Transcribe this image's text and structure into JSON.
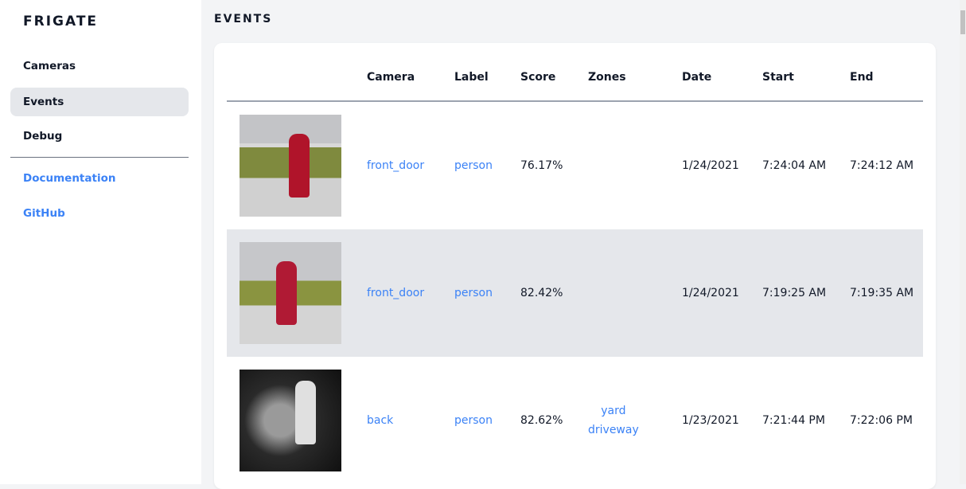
{
  "sidebar": {
    "logo": "FRIGATE",
    "items": [
      {
        "label": "Cameras"
      },
      {
        "label": "Events",
        "active": true
      },
      {
        "label": "Debug"
      }
    ],
    "links": [
      {
        "label": "Documentation"
      },
      {
        "label": "GitHub"
      }
    ]
  },
  "page": {
    "title": "EVENTS"
  },
  "table": {
    "headers": [
      "Camera",
      "Label",
      "Score",
      "Zones",
      "Date",
      "Start",
      "End"
    ],
    "rows": [
      {
        "camera": "front_door",
        "label": "person",
        "score": "76.17%",
        "zones": [
          "",
          ""
        ],
        "date": "1/24/2021",
        "start": "7:24:04 AM",
        "end": "7:24:12 AM"
      },
      {
        "camera": "front_door",
        "label": "person",
        "score": "82.42%",
        "zones": [
          "",
          ""
        ],
        "date": "1/24/2021",
        "start": "7:19:25 AM",
        "end": "7:19:35 AM"
      },
      {
        "camera": "back",
        "label": "person",
        "score": "82.62%",
        "zones": [
          "yard",
          "driveway"
        ],
        "date": "1/23/2021",
        "start": "7:21:44 PM",
        "end": "7:22:06 PM"
      }
    ]
  },
  "colors": {
    "accent": "#3b82f6",
    "active_bg": "#e5e7eb"
  }
}
